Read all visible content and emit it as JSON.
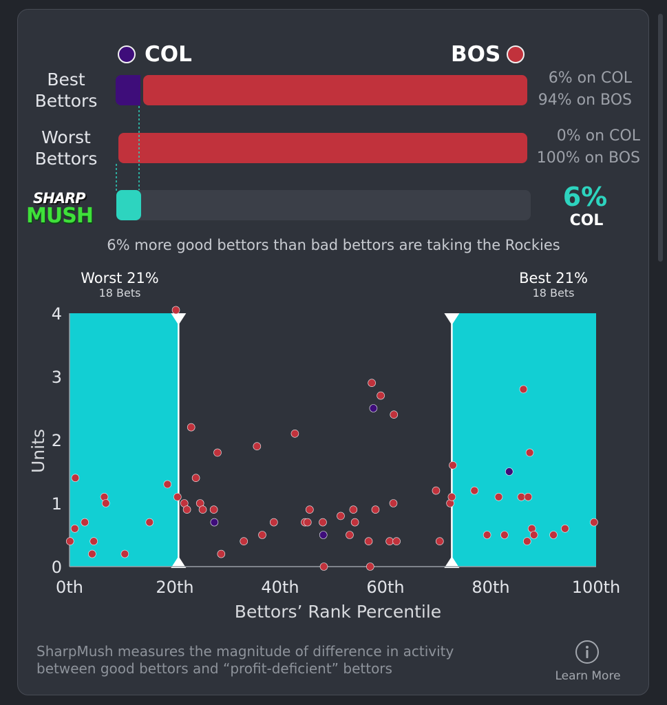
{
  "teams": {
    "left": {
      "abbr": "COL",
      "color": "#3e0d7a"
    },
    "right": {
      "abbr": "BOS",
      "color": "#c1323c"
    }
  },
  "rows": {
    "best": {
      "label_line1": "Best",
      "label_line2": "Bettors",
      "left_pct_text": "6% on COL",
      "right_pct_text": "94% on BOS",
      "left_fraction": 0.06
    },
    "worst": {
      "label_line1": "Worst",
      "label_line2": "Bettors",
      "left_pct_text": "0% on COL",
      "right_pct_text": "100% on BOS",
      "left_fraction": 0.0
    }
  },
  "sharpmush": {
    "logo_line1": "SHARP",
    "logo_line2": "MUSH",
    "value_text": "6%",
    "team_text": "COL",
    "fraction": 0.06,
    "accent": "#2dd4bf",
    "caption": "6% more good bettors than bad bettors are taking the Rockies"
  },
  "chart_data": {
    "type": "scatter",
    "xlabel": "Bettors’ Rank Percentile",
    "ylabel": "Units",
    "xlim": [
      0,
      100
    ],
    "ylim": [
      0,
      4
    ],
    "x_ticks": [
      "0th",
      "20th",
      "40th",
      "60th",
      "80th",
      "100th"
    ],
    "y_ticks": [
      "0",
      "1",
      "2",
      "3",
      "4"
    ],
    "regions": [
      {
        "name": "Worst 21%",
        "sublabel": "18 Bets",
        "from": 0,
        "to": 20.7
      },
      {
        "name": "Best 21%",
        "sublabel": "18 Bets",
        "from": 72.6,
        "to": 100
      }
    ],
    "series": [
      {
        "team": "BOS",
        "color": "#c1323c",
        "points": [
          [
            0.1,
            0.4
          ],
          [
            1,
            0.6
          ],
          [
            1.1,
            1.4
          ],
          [
            2.9,
            0.7
          ],
          [
            4.3,
            0.2
          ],
          [
            4.6,
            0.4
          ],
          [
            6.6,
            1.1
          ],
          [
            6.9,
            1.0
          ],
          [
            10.5,
            0.2
          ],
          [
            15.2,
            0.7
          ],
          [
            18.6,
            1.3
          ],
          [
            20.2,
            4.05
          ],
          [
            20.5,
            1.1
          ],
          [
            21.8,
            1.0
          ],
          [
            22.3,
            0.9
          ],
          [
            23.1,
            2.2
          ],
          [
            24,
            1.4
          ],
          [
            24.8,
            1.0
          ],
          [
            25.3,
            0.9
          ],
          [
            27.4,
            0.9
          ],
          [
            28.1,
            1.8
          ],
          [
            28.8,
            0.2
          ],
          [
            33.1,
            0.4
          ],
          [
            35.6,
            1.9
          ],
          [
            36.6,
            0.5
          ],
          [
            38.8,
            0.7
          ],
          [
            42.8,
            2.1
          ],
          [
            44.7,
            0.7
          ],
          [
            45.2,
            0.7
          ],
          [
            45.6,
            0.9
          ],
          [
            48.1,
            0.7
          ],
          [
            48.3,
            0.0
          ],
          [
            51.5,
            0.8
          ],
          [
            53.2,
            0.5
          ],
          [
            53.9,
            0.9
          ],
          [
            54.2,
            0.7
          ],
          [
            56.8,
            0.4
          ],
          [
            57.1,
            0.0
          ],
          [
            57.4,
            2.9
          ],
          [
            58.1,
            0.9
          ],
          [
            59.1,
            2.7
          ],
          [
            60.8,
            0.4
          ],
          [
            61.5,
            1.0
          ],
          [
            61.6,
            2.4
          ],
          [
            62.1,
            0.4
          ],
          [
            69.6,
            1.2
          ],
          [
            70.3,
            0.4
          ],
          [
            72.3,
            1.0
          ],
          [
            72.6,
            1.1
          ],
          [
            72.8,
            1.6
          ],
          [
            76.9,
            1.2
          ],
          [
            79.3,
            0.5
          ],
          [
            81.5,
            1.1
          ],
          [
            82.6,
            0.5
          ],
          [
            85.8,
            1.1
          ],
          [
            86.2,
            2.8
          ],
          [
            86.9,
            0.4
          ],
          [
            87.1,
            1.1
          ],
          [
            87.4,
            1.8
          ],
          [
            87.8,
            0.6
          ],
          [
            88.2,
            0.5
          ],
          [
            91.9,
            0.5
          ],
          [
            94.1,
            0.6
          ],
          [
            99.6,
            0.7
          ]
        ]
      },
      {
        "team": "COL",
        "color": "#3e0d7a",
        "points": [
          [
            27.5,
            0.7
          ],
          [
            48.2,
            0.5
          ],
          [
            57.7,
            2.5
          ],
          [
            83.5,
            1.5
          ]
        ]
      }
    ]
  },
  "footer": {
    "text_line1": "SharpMush measures the magnitude of difference in activity",
    "text_line2": "between good bettors and “profit-deficient” bettors",
    "learn_more": "Learn More"
  }
}
